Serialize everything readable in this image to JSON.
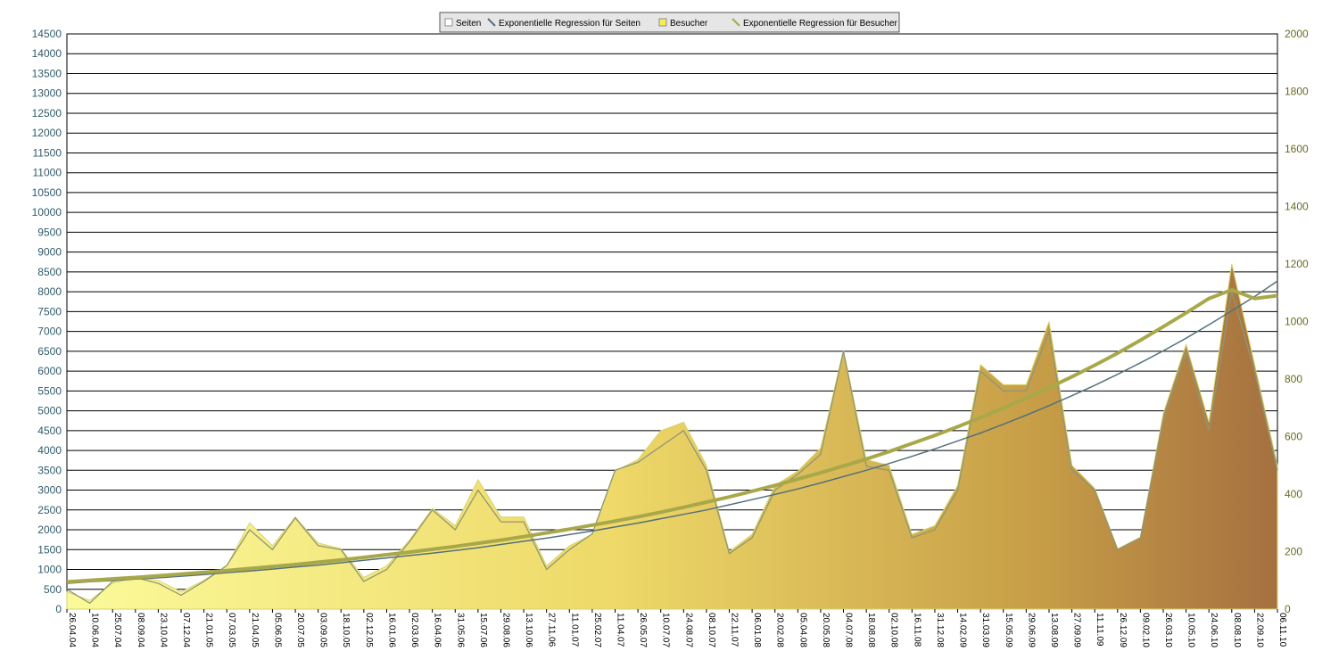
{
  "chart_data": {
    "type": "area",
    "title": "",
    "legend": {
      "placement": "top-center",
      "entries": [
        {
          "label": "Seiten",
          "symbol": "square",
          "color": "#ffffff"
        },
        {
          "label": "Exponentielle Regression für Seiten",
          "symbol": "line",
          "color": "#55707a"
        },
        {
          "label": "Besucher",
          "symbol": "square",
          "color": "#f2ee5a"
        },
        {
          "label": "Exponentielle Regression für Besucher",
          "symbol": "line",
          "color": "#a8a84a"
        }
      ]
    },
    "y_left": {
      "min": 0,
      "max": 14500,
      "step": 500
    },
    "y_right": {
      "min": 0,
      "max": 2000,
      "step": 200
    },
    "grid": true,
    "categories": [
      "26.04.04",
      "10.06.04",
      "25.07.04",
      "08.09.04",
      "23.10.04",
      "07.12.04",
      "21.01.05",
      "07.03.05",
      "21.04.05",
      "05.06.05",
      "20.07.05",
      "03.09.05",
      "18.10.05",
      "02.12.05",
      "16.01.06",
      "02.03.06",
      "16.04.06",
      "31.05.06",
      "15.07.06",
      "29.08.06",
      "13.10.06",
      "27.11.06",
      "11.01.07",
      "25.02.07",
      "11.04.07",
      "26.05.07",
      "10.07.07",
      "24.08.07",
      "08.10.07",
      "22.11.07",
      "06.01.08",
      "20.02.08",
      "05.04.08",
      "20.05.08",
      "04.07.08",
      "18.08.08",
      "02.10.08",
      "16.11.08",
      "31.12.08",
      "14.02.09",
      "31.03.09",
      "15.05.09",
      "29.06.09",
      "13.08.09",
      "27.09.09",
      "11.11.09",
      "26.12.09",
      "09.02.10",
      "26.03.10",
      "10.05.10",
      "24.06.10",
      "08.08.10",
      "22.09.10",
      "06.11.10"
    ],
    "series": [
      {
        "name": "Seiten",
        "axis": "left",
        "values": [
          500,
          150,
          700,
          800,
          650,
          350,
          700,
          1100,
          2000,
          1500,
          2300,
          1600,
          1500,
          700,
          1000,
          1700,
          2500,
          2000,
          3000,
          2200,
          2200,
          1000,
          1500,
          1900,
          3500,
          3700,
          4100,
          4500,
          3500,
          1400,
          1800,
          3000,
          3400,
          3900,
          6500,
          3600,
          3500,
          1800,
          2000,
          3000,
          6000,
          5500,
          5500,
          7000,
          3500,
          3000,
          1500,
          1800,
          4800,
          6500,
          4500,
          8000,
          6000,
          3500
        ]
      },
      {
        "name": "Besucher",
        "axis": "right",
        "values": [
          60,
          30,
          90,
          110,
          100,
          60,
          100,
          150,
          300,
          220,
          320,
          230,
          210,
          110,
          150,
          240,
          350,
          290,
          450,
          320,
          320,
          150,
          220,
          260,
          480,
          520,
          620,
          650,
          500,
          200,
          260,
          430,
          480,
          560,
          900,
          520,
          500,
          260,
          290,
          430,
          850,
          780,
          780,
          1000,
          500,
          420,
          210,
          250,
          680,
          920,
          650,
          1200,
          850,
          500
        ]
      },
      {
        "name": "Exponentielle Regression für Seiten",
        "axis": "left",
        "values": [
          650,
          690,
          720,
          760,
          790,
          830,
          870,
          920,
          960,
          1010,
          1060,
          1110,
          1170,
          1230,
          1290,
          1350,
          1410,
          1480,
          1550,
          1630,
          1710,
          1790,
          1880,
          1970,
          2070,
          2170,
          2280,
          2390,
          2500,
          2630,
          2760,
          2890,
          3030,
          3180,
          3340,
          3500,
          3670,
          3850,
          4040,
          4240,
          4440,
          4660,
          4890,
          5130,
          5380,
          5640,
          5920,
          6210,
          6510,
          6830,
          7170,
          7520,
          7880,
          8270
        ]
      },
      {
        "name": "Exponentielle Regression für Besucher",
        "axis": "right",
        "values": [
          95,
          100,
          105,
          110,
          116,
          122,
          128,
          134,
          141,
          148,
          155,
          163,
          171,
          180,
          189,
          198,
          208,
          218,
          229,
          240,
          252,
          265,
          278,
          292,
          306,
          321,
          337,
          354,
          372,
          390,
          410,
          430,
          452,
          474,
          498,
          522,
          548,
          576,
          604,
          634,
          666,
          699,
          734,
          770,
          808,
          848,
          890,
          935,
          982,
          1030,
          1080,
          1110,
          1080,
          1090
        ]
      }
    ]
  }
}
